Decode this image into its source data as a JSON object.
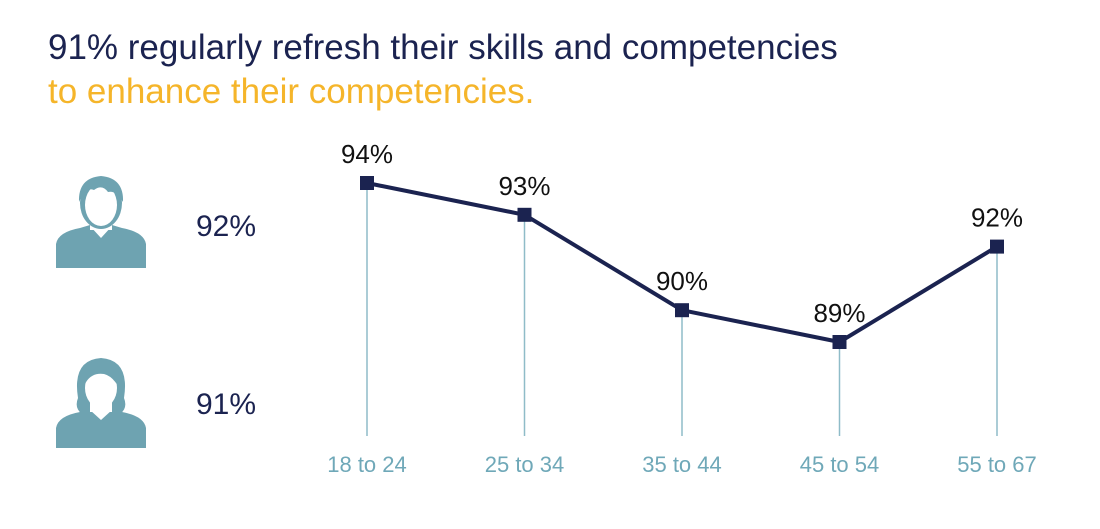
{
  "title": {
    "line1": "91% regularly refresh their skills and competencies",
    "line2": "to enhance their competencies."
  },
  "gender": {
    "male": {
      "icon": "male-person-icon",
      "value": "92%"
    },
    "female": {
      "icon": "female-person-icon",
      "value": "91%"
    }
  },
  "colors": {
    "title_primary": "#1b2350",
    "title_accent": "#f5b52a",
    "line": "#1b2350",
    "drop_lines": "#8fbcc8",
    "axis_labels": "#6fa8b8",
    "icons": "#6ea3b1"
  },
  "chart_data": {
    "type": "line",
    "categories": [
      "18 to 24",
      "25 to 34",
      "35 to 44",
      "45 to 54",
      "55 to 67"
    ],
    "values": [
      94,
      93,
      90,
      89,
      92
    ],
    "value_labels": [
      "94%",
      "93%",
      "90%",
      "89%",
      "92%"
    ],
    "unit": "%",
    "ylim": [
      85,
      96
    ],
    "grid": false,
    "legend": "none",
    "marker": "square"
  }
}
